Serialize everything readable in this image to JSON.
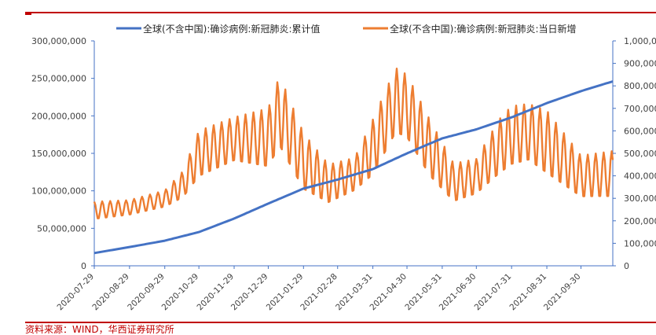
{
  "source": "资料来源：WIND，华西证券研究所",
  "colors": {
    "cumulative": "#4472c4",
    "daily": "#ed7d31",
    "frame": "#c00000",
    "axis": "#595959"
  },
  "legend": [
    {
      "label": "全球(不含中国):确诊病例:新冠肺炎:累计值",
      "series": 0
    },
    {
      "label": "全球(不含中国):确诊病例:新冠肺炎:当日新增",
      "series": 1
    }
  ],
  "chart_data": {
    "type": "line",
    "title": "",
    "x_start": "2020-07-29",
    "x_end": "2021-10-28",
    "x_ticks": [
      "2020-07-29",
      "2020-08-29",
      "2020-09-29",
      "2020-10-29",
      "2020-11-29",
      "2020-12-29",
      "2021-01-29",
      "2021-02-28",
      "2021-03-31",
      "2021-04-30",
      "2021-05-31",
      "2021-06-30",
      "2021-07-31",
      "2021-08-31",
      "2021-09-30"
    ],
    "y_left": {
      "range": [
        0,
        300000000
      ],
      "ticks": [
        "0",
        "50,000,000",
        "100,000,000",
        "150,000,000",
        "200,000,000",
        "250,000,000",
        "300,000,000"
      ]
    },
    "y_right": {
      "range": [
        0,
        1000000
      ],
      "ticks": [
        "0",
        "100,000",
        "200,000",
        "300,000",
        "400,000",
        "500,000",
        "600,000",
        "700,000",
        "800,000",
        "900,000",
        "1,000,000"
      ]
    },
    "series": [
      {
        "name": "全球(不含中国):确诊病例:新冠肺炎:累计值",
        "axis": "left",
        "points": [
          [
            "2020-07-29",
            17000000
          ],
          [
            "2020-08-29",
            25000000
          ],
          [
            "2020-09-29",
            33500000
          ],
          [
            "2020-10-29",
            45000000
          ],
          [
            "2020-11-29",
            63000000
          ],
          [
            "2020-12-29",
            83000000
          ],
          [
            "2021-01-29",
            103000000
          ],
          [
            "2021-02-28",
            115000000
          ],
          [
            "2021-03-31",
            129000000
          ],
          [
            "2021-04-30",
            150000000
          ],
          [
            "2021-05-31",
            170000000
          ],
          [
            "2021-06-30",
            182000000
          ],
          [
            "2021-07-31",
            198000000
          ],
          [
            "2021-08-31",
            217000000
          ],
          [
            "2021-09-30",
            233000000
          ],
          [
            "2021-10-28",
            246000000
          ]
        ]
      },
      {
        "name": "全球(不含中国):确诊病例:新冠肺炎:当日新增",
        "axis": "right",
        "weekly_cycle": true,
        "peaks": [
          [
            "2020-07-29",
            285000
          ],
          [
            "2020-08-29",
            292000
          ],
          [
            "2020-09-29",
            335000
          ],
          [
            "2020-10-15",
            420000
          ],
          [
            "2020-10-29",
            600000
          ],
          [
            "2020-11-29",
            660000
          ],
          [
            "2020-12-29",
            700000
          ],
          [
            "2021-01-08",
            845000
          ],
          [
            "2021-01-29",
            590000
          ],
          [
            "2021-02-20",
            450000
          ],
          [
            "2021-03-15",
            480000
          ],
          [
            "2021-03-31",
            650000
          ],
          [
            "2021-04-20",
            880000
          ],
          [
            "2021-04-30",
            850000
          ],
          [
            "2021-05-20",
            650000
          ],
          [
            "2021-06-10",
            455000
          ],
          [
            "2021-06-30",
            475000
          ],
          [
            "2021-07-20",
            650000
          ],
          [
            "2021-07-31",
            710000
          ],
          [
            "2021-08-15",
            720000
          ],
          [
            "2021-08-31",
            690000
          ],
          [
            "2021-09-30",
            490000
          ],
          [
            "2021-10-28",
            510000
          ]
        ],
        "troughs": [
          [
            "2020-07-29",
            205000
          ],
          [
            "2020-08-29",
            225000
          ],
          [
            "2020-09-29",
            260000
          ],
          [
            "2020-10-15",
            300000
          ],
          [
            "2020-10-29",
            390000
          ],
          [
            "2020-11-29",
            460000
          ],
          [
            "2020-12-29",
            430000
          ],
          [
            "2021-01-08",
            520000
          ],
          [
            "2021-01-29",
            330000
          ],
          [
            "2021-02-20",
            275000
          ],
          [
            "2021-03-15",
            330000
          ],
          [
            "2021-03-31",
            395000
          ],
          [
            "2021-04-20",
            580000
          ],
          [
            "2021-04-30",
            560000
          ],
          [
            "2021-05-20",
            390000
          ],
          [
            "2021-06-10",
            280000
          ],
          [
            "2021-06-30",
            315000
          ],
          [
            "2021-07-20",
            400000
          ],
          [
            "2021-07-31",
            440000
          ],
          [
            "2021-08-15",
            460000
          ],
          [
            "2021-08-31",
            400000
          ],
          [
            "2021-09-30",
            300000
          ],
          [
            "2021-10-28",
            300000
          ]
        ]
      }
    ]
  }
}
